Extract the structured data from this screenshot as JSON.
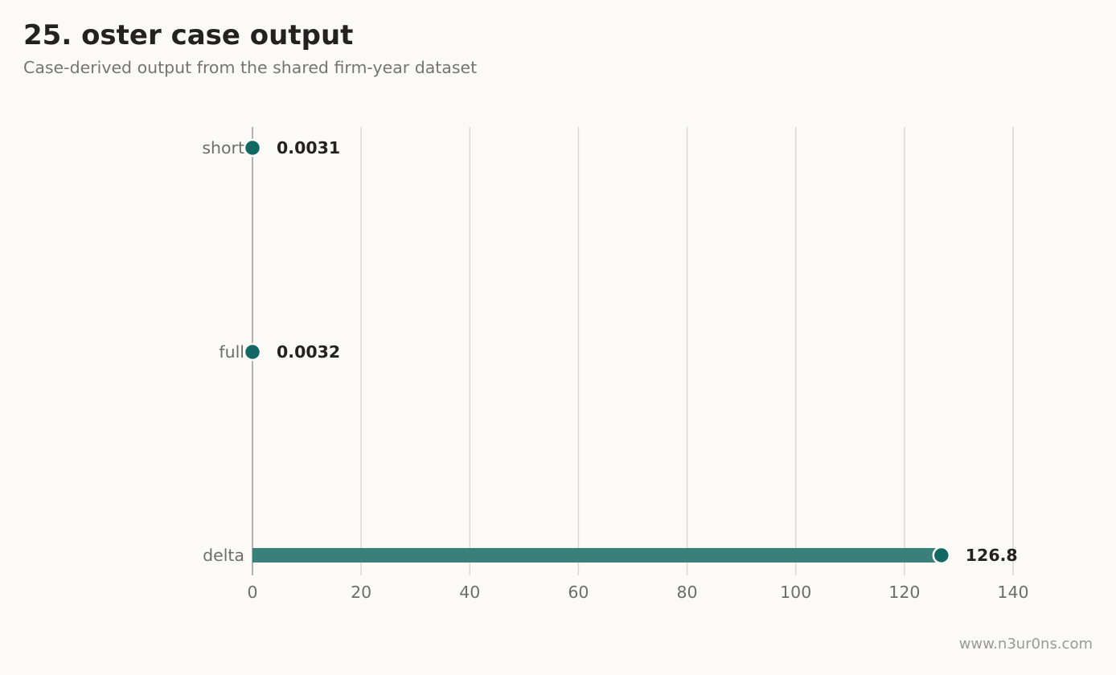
{
  "title": "25. oster case output",
  "subtitle": "Case-derived output from the shared firm-year dataset",
  "footer": "www.n3ur0ns.com",
  "colors": {
    "accent": "#146864",
    "bar": "#3a7f7a",
    "grid": "#d9d8d3",
    "axis": "#9b9b96"
  },
  "chart_data": {
    "type": "bar",
    "orientation": "horizontal",
    "categories": [
      "short",
      "full",
      "delta"
    ],
    "values": [
      0.0031,
      0.0032,
      126.8
    ],
    "value_labels": [
      "0.0031",
      "0.0032",
      "126.8"
    ],
    "xlim": [
      0,
      140
    ],
    "xticks": [
      0,
      20,
      40,
      60,
      80,
      100,
      120,
      140
    ],
    "grid": "vertical"
  }
}
